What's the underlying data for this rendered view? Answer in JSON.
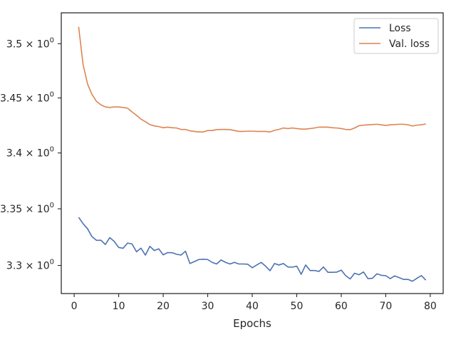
{
  "chart_data": {
    "type": "line",
    "title": "",
    "xlabel": "Epochs",
    "ylabel": "",
    "yscale": "log",
    "grid": false,
    "legend_position": "top-right",
    "xlim": [
      -2.9,
      82.9
    ],
    "ylim": [
      3.2755,
      3.5288
    ],
    "x_ticks": [
      0,
      10,
      20,
      30,
      40,
      50,
      60,
      70,
      80
    ],
    "x_tick_labels": [
      "0",
      "10",
      "20",
      "30",
      "40",
      "50",
      "60",
      "70",
      "80"
    ],
    "y_ticks": [
      3.3,
      3.35,
      3.4,
      3.45,
      3.5
    ],
    "y_tick_labels": [
      {
        "mantissa": "3.3",
        "times": "×",
        "base": "10",
        "exp": "0"
      },
      {
        "mantissa": "3.35",
        "times": "×",
        "base": "10",
        "exp": "0"
      },
      {
        "mantissa": "3.4",
        "times": "×",
        "base": "10",
        "exp": "0"
      },
      {
        "mantissa": "3.45",
        "times": "×",
        "base": "10",
        "exp": "0"
      },
      {
        "mantissa": "3.5",
        "times": "×",
        "base": "10",
        "exp": "0"
      }
    ],
    "x": [
      1,
      2,
      3,
      4,
      5,
      6,
      7,
      8,
      9,
      10,
      11,
      12,
      13,
      14,
      15,
      16,
      17,
      18,
      19,
      20,
      21,
      22,
      23,
      24,
      25,
      26,
      27,
      28,
      29,
      30,
      31,
      32,
      33,
      34,
      35,
      36,
      37,
      38,
      39,
      40,
      41,
      42,
      43,
      44,
      45,
      46,
      47,
      48,
      49,
      50,
      51,
      52,
      53,
      54,
      55,
      56,
      57,
      58,
      59,
      60,
      61,
      62,
      63,
      64,
      65,
      66,
      67,
      68,
      69,
      70,
      71,
      72,
      73,
      74,
      75,
      76,
      77,
      78,
      79
    ],
    "series": [
      {
        "name": "Loss",
        "color": "#4c72b0",
        "values": [
          3.3425,
          3.3368,
          3.3323,
          3.3253,
          3.3221,
          3.3222,
          3.3184,
          3.3245,
          3.3211,
          3.3158,
          3.3151,
          3.3197,
          3.3189,
          3.312,
          3.3152,
          3.3091,
          3.3168,
          3.3131,
          3.3146,
          3.3093,
          3.3113,
          3.3112,
          3.3098,
          3.3091,
          3.3125,
          3.3017,
          3.3034,
          3.3052,
          3.3055,
          3.3052,
          3.3027,
          3.3013,
          3.3048,
          3.3027,
          3.3013,
          3.3027,
          3.3013,
          3.3013,
          3.3011,
          3.298,
          3.3004,
          3.3027,
          3.2994,
          3.2954,
          3.3017,
          3.3004,
          3.3017,
          3.2987,
          3.2985,
          3.2994,
          3.2923,
          3.3004,
          3.2956,
          3.2956,
          3.2948,
          3.2987,
          3.294,
          3.294,
          3.2942,
          3.2959,
          3.2911,
          3.2882,
          3.2932,
          3.2919,
          3.2943,
          3.2885,
          3.2888,
          3.2927,
          3.2914,
          3.2911,
          3.2885,
          3.2909,
          3.2894,
          3.2878,
          3.2878,
          3.2862,
          3.2888,
          3.2911,
          3.2872
        ]
      },
      {
        "name": "Val. loss",
        "color": "#dd8452",
        "values": [
          3.5157,
          3.4807,
          3.4628,
          3.4532,
          3.4469,
          3.4437,
          3.4418,
          3.4413,
          3.4418,
          3.4418,
          3.4413,
          3.4406,
          3.4372,
          3.4341,
          3.4307,
          3.4283,
          3.4257,
          3.4245,
          3.4239,
          3.4228,
          3.4234,
          3.4228,
          3.4226,
          3.4213,
          3.4213,
          3.42,
          3.4195,
          3.419,
          3.419,
          3.4203,
          3.4203,
          3.4211,
          3.4213,
          3.4213,
          3.4211,
          3.4203,
          3.4195,
          3.4195,
          3.4197,
          3.4197,
          3.4195,
          3.4195,
          3.4195,
          3.419,
          3.4205,
          3.4213,
          3.4226,
          3.4221,
          3.4226,
          3.4221,
          3.4216,
          3.4216,
          3.4221,
          3.4226,
          3.4234,
          3.4234,
          3.4234,
          3.4228,
          3.4226,
          3.4221,
          3.4213,
          3.4211,
          3.4226,
          3.4247,
          3.4252,
          3.4255,
          3.4257,
          3.426,
          3.4255,
          3.4249,
          3.4255,
          3.4257,
          3.426,
          3.426,
          3.4255,
          3.4244,
          3.4252,
          3.4255,
          3.4263
        ]
      }
    ]
  }
}
